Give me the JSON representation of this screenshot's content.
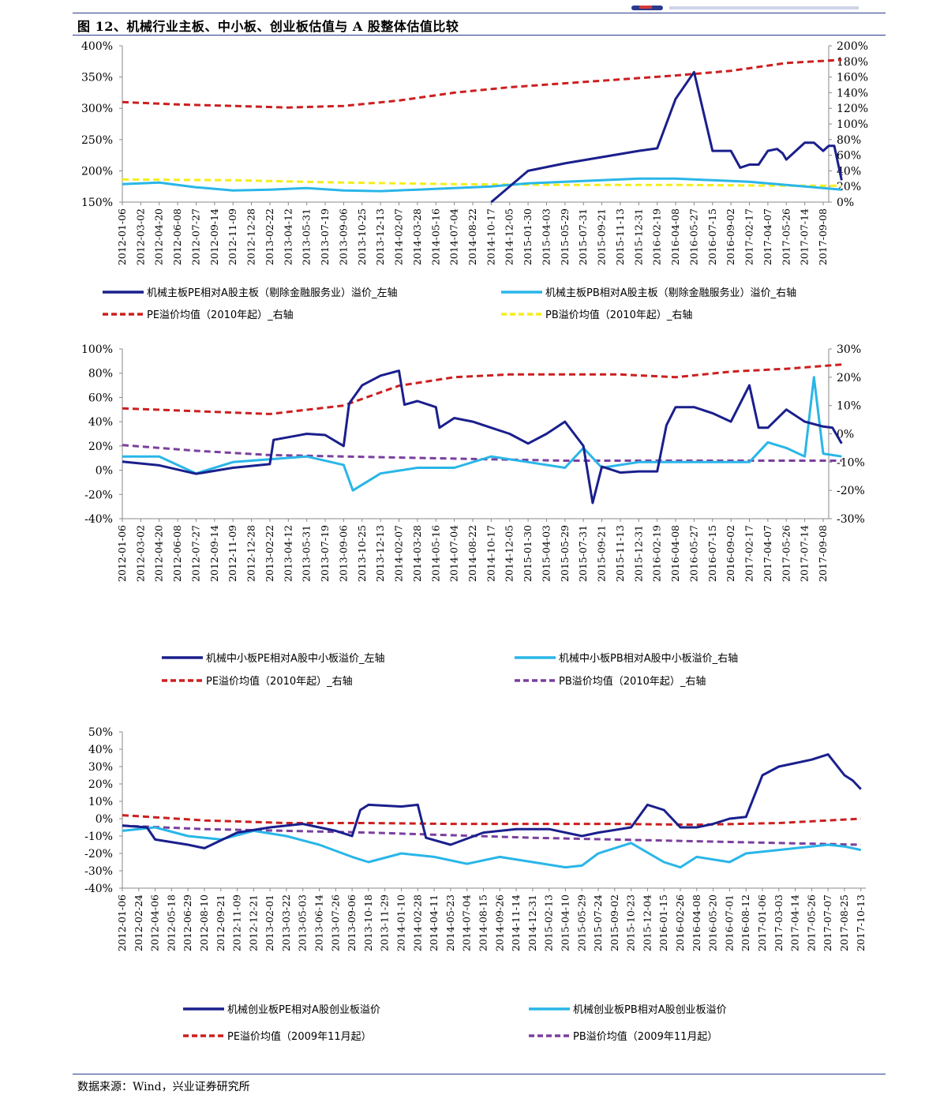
{
  "header": {
    "title": "图 12、机械行业主板、中小板、创业板估值与 A 股整体估值比较"
  },
  "source": "数据来源：Wind，兴业证券研究所",
  "colors": {
    "dark_blue": "#1a1f8c",
    "light_blue": "#29b6e8",
    "red": "#cc1f1f",
    "yellow": "#f5ee1a",
    "purple": "#7a3f9e"
  },
  "chart_data": [
    {
      "type": "line",
      "left_ylim": [
        150,
        400
      ],
      "left_yticks": [
        "400%",
        "350%",
        "300%",
        "250%",
        "200%",
        "150%"
      ],
      "right_ylim": [
        0,
        200
      ],
      "right_yticks": [
        "200%",
        "180%",
        "160%",
        "140%",
        "120%",
        "100%",
        "80%",
        "60%",
        "40%",
        "20%",
        "0%"
      ],
      "x_tick_labels": [
        "2012-01-06",
        "2012-03-02",
        "2012-04-20",
        "2012-06-08",
        "2012-07-27",
        "2012-09-14",
        "2012-11-09",
        "2012-12-28",
        "2013-02-22",
        "2013-04-12",
        "2013-05-31",
        "2013-07-19",
        "2013-09-06",
        "2013-10-25",
        "2013-12-13",
        "2014-02-07",
        "2014-03-28",
        "2014-05-16",
        "2014-07-04",
        "2014-08-22",
        "2014-10-17",
        "2014-12-05",
        "2015-01-30",
        "2015-04-03",
        "2015-05-29",
        "2015-07-31",
        "2015-09-21",
        "2015-11-13",
        "2015-12-31",
        "2016-02-19",
        "2016-04-08",
        "2016-05-27",
        "2016-07-15",
        "2016-09-02",
        "2017-02-17",
        "2017-04-07",
        "2017-05-26",
        "2017-07-14",
        "2017-09-08"
      ],
      "series": [
        {
          "name": "机械主板PE相对A股主板（剔除金融服务业）溢价_左轴",
          "axis": "left",
          "color": "#1a1f8c",
          "style": "solid",
          "x": [
            0,
            3,
            6,
            9,
            12,
            15,
            18,
            20,
            22,
            24,
            26,
            28,
            29,
            30,
            31,
            32,
            33,
            33.5,
            34,
            34.5,
            35,
            35.5,
            35.8,
            36,
            37,
            37.5,
            38,
            38.3,
            38.6,
            39
          ],
          "values": [
            null,
            null,
            null,
            null,
            null,
            null,
            null,
            140,
            200,
            212,
            222,
            232,
            236,
            315,
            358,
            232,
            232,
            205,
            210,
            210,
            232,
            235,
            228,
            218,
            245,
            245,
            232,
            240,
            240,
            185
          ],
          "xv": [],
          "yv": []
        },
        {
          "name": "机械主板PB相对A股主板（剔除金融服务业）溢价_右轴",
          "axis": "right",
          "color": "#29b6e8",
          "style": "solid",
          "x": [
            0,
            2,
            4,
            6,
            8,
            10,
            12,
            14,
            16,
            18,
            20,
            22,
            24,
            26,
            28,
            30,
            32,
            34,
            36,
            38,
            39
          ],
          "values": [
            23,
            25,
            19,
            15,
            16,
            18,
            15,
            14,
            16,
            18,
            20,
            24,
            26,
            28,
            30,
            30,
            28,
            26,
            22,
            18,
            16
          ]
        },
        {
          "name": "PE溢价均值（2010年起）_右轴",
          "axis": "right",
          "color": "#cc1f1f",
          "style": "dashed",
          "x": [
            0,
            3,
            6,
            9,
            12,
            15,
            18,
            21,
            24,
            27,
            30,
            33,
            36,
            39
          ],
          "values": [
            128,
            125,
            123,
            121,
            123,
            130,
            140,
            147,
            152,
            157,
            162,
            168,
            178,
            182
          ]
        },
        {
          "name": "PB溢价均值（2010年起）_右轴",
          "axis": "right",
          "color": "#f5ee1a",
          "style": "dashed",
          "x": [
            0,
            6,
            12,
            18,
            24,
            30,
            36,
            39
          ],
          "values": [
            29,
            28,
            25,
            23,
            22,
            22,
            21,
            21
          ]
        }
      ]
    },
    {
      "type": "line",
      "left_ylim": [
        -40,
        100
      ],
      "left_yticks": [
        "100%",
        "80%",
        "60%",
        "40%",
        "20%",
        "0%",
        "-20%",
        "-40%"
      ],
      "right_ylim": [
        -30,
        30
      ],
      "right_yticks": [
        "30%",
        "20%",
        "10%",
        "0%",
        "-10%",
        "-20%",
        "-30%"
      ],
      "x_tick_labels": [
        "2012-01-06",
        "2012-03-02",
        "2012-04-20",
        "2012-06-08",
        "2012-07-27",
        "2012-09-14",
        "2012-11-09",
        "2012-12-28",
        "2013-02-22",
        "2013-04-12",
        "2013-05-31",
        "2013-07-19",
        "2013-09-06",
        "2013-10-25",
        "2013-12-13",
        "2014-02-07",
        "2014-03-28",
        "2014-05-16",
        "2014-07-04",
        "2014-08-22",
        "2014-10-17",
        "2014-12-05",
        "2015-01-30",
        "2015-04-03",
        "2015-05-29",
        "2015-07-31",
        "2015-09-21",
        "2015-11-13",
        "2015-12-31",
        "2016-02-19",
        "2016-04-08",
        "2016-05-27",
        "2016-07-15",
        "2016-09-02",
        "2017-02-17",
        "2017-04-07",
        "2017-05-26",
        "2017-07-14",
        "2017-09-08"
      ],
      "series": [
        {
          "name": "机械中小板PE相对A股中小板溢价_左轴",
          "axis": "left",
          "color": "#1a1f8c",
          "style": "solid",
          "x": [
            0,
            2,
            4,
            6,
            8,
            8.2,
            10,
            11,
            12,
            12.3,
            13,
            14,
            15,
            15.3,
            16,
            17,
            17.2,
            18,
            19,
            20,
            21,
            22,
            23,
            24,
            25,
            25.5,
            26,
            27,
            28,
            29,
            29.5,
            30,
            31,
            32,
            33,
            34,
            34.5,
            35,
            36,
            37,
            38,
            38.5,
            39
          ],
          "values": [
            7,
            4,
            -3,
            2,
            5,
            25,
            30,
            29,
            20,
            55,
            70,
            78,
            82,
            54,
            57,
            52,
            35,
            43,
            40,
            35,
            30,
            22,
            30,
            40,
            20,
            -27,
            3,
            -2,
            -1,
            -1,
            37,
            52,
            52,
            47,
            40,
            70,
            35,
            35,
            50,
            40,
            36,
            35,
            22
          ]
        },
        {
          "name": "机械中小板PB相对A股中小板溢价_右轴",
          "axis": "right",
          "color": "#29b6e8",
          "style": "solid",
          "x": [
            0,
            2,
            4,
            6,
            8,
            10,
            12,
            12.5,
            14,
            16,
            18,
            20,
            22,
            24,
            25,
            26,
            28,
            30,
            32,
            34,
            35,
            36,
            37,
            37.5,
            38,
            39
          ],
          "values": [
            -8,
            -8,
            -14,
            -10,
            -9,
            -8,
            -11,
            -20,
            -14,
            -12,
            -12,
            -8,
            -10,
            -12,
            -5,
            -12,
            -10,
            -10,
            -10,
            -10,
            -3,
            -5,
            -8,
            20,
            -7,
            -8
          ]
        },
        {
          "name": "PE溢价均值（2010年起）_右轴",
          "axis": "right",
          "color": "#cc1f1f",
          "style": "dashed",
          "x": [
            0,
            4,
            8,
            12,
            15,
            18,
            21,
            24,
            27,
            30,
            33,
            36,
            39
          ],
          "values": [
            9,
            8,
            7,
            10,
            17,
            20,
            21,
            21,
            21,
            20,
            22,
            23,
            24.5
          ]
        },
        {
          "name": "PB溢价均值（2010年起）_右轴",
          "axis": "right",
          "color": "#7a3f9e",
          "style": "dashed",
          "x": [
            0,
            4,
            8,
            12,
            16,
            20,
            24,
            28,
            32,
            36,
            39
          ],
          "values": [
            -4,
            -6,
            -7.5,
            -8,
            -8.5,
            -9,
            -9.5,
            -9.5,
            -9.5,
            -9.5,
            -9.5
          ]
        }
      ]
    },
    {
      "type": "line",
      "ylim": [
        -40,
        50
      ],
      "yticks": [
        "50%",
        "40%",
        "30%",
        "20%",
        "10%",
        "0%",
        "-10%",
        "-20%",
        "-30%",
        "-40%"
      ],
      "x_tick_labels": [
        "2012-01-06",
        "2012-02-24",
        "2012-04-06",
        "2012-05-18",
        "2012-06-29",
        "2012-08-10",
        "2012-09-21",
        "2012-11-09",
        "2012-12-21",
        "2013-02-01",
        "2013-03-22",
        "2013-05-03",
        "2013-06-14",
        "2013-07-26",
        "2013-09-06",
        "2013-10-18",
        "2013-11-29",
        "2014-01-10",
        "2014-02-28",
        "2014-04-11",
        "2014-05-23",
        "2014-07-04",
        "2014-08-15",
        "2014-09-26",
        "2014-11-14",
        "2014-12-31",
        "2015-02-13",
        "2015-04-10",
        "2015-05-29",
        "2015-07-24",
        "2015-09-02",
        "2015-10-23",
        "2015-12-04",
        "2016-01-15",
        "2016-02-26",
        "2016-04-08",
        "2016-05-20",
        "2016-07-01",
        "2016-08-12",
        "2017-01-06",
        "2017-03-03",
        "2017-04-14",
        "2017-05-26",
        "2017-07-07",
        "2017-08-25",
        "2017-10-13"
      ],
      "series": [
        {
          "name": "机械创业板PE相对A股创业板溢价",
          "color": "#1a1f8c",
          "style": "solid",
          "x": [
            0,
            1.5,
            2,
            4,
            5,
            7,
            9,
            11,
            13,
            14,
            14.5,
            15,
            17,
            18,
            18.5,
            20,
            22,
            24,
            26,
            28,
            29,
            31,
            32,
            33,
            34,
            35,
            36,
            37,
            38,
            39,
            40,
            41,
            42,
            43,
            44,
            44.5,
            45
          ],
          "values": [
            -4,
            -5,
            -12,
            -15,
            -17,
            -8,
            -5,
            -3,
            -7,
            -10,
            5,
            8,
            7,
            8,
            -11,
            -15,
            -8,
            -6,
            -6,
            -10,
            -8,
            -5,
            8,
            5,
            -5,
            -5,
            -3,
            0,
            1,
            25,
            30,
            32,
            34,
            37,
            25,
            22,
            17
          ]
        },
        {
          "name": "机械创业板PB相对A股创业板溢价",
          "color": "#29b6e8",
          "style": "solid",
          "x": [
            0,
            2,
            4,
            6,
            8,
            10,
            12,
            14,
            15,
            17,
            19,
            21,
            23,
            25,
            27,
            28,
            29,
            31,
            33,
            34,
            35,
            37,
            38,
            40,
            42,
            43,
            44,
            45
          ],
          "values": [
            -7,
            -5,
            -10,
            -12,
            -7,
            -10,
            -15,
            -22,
            -25,
            -20,
            -22,
            -26,
            -22,
            -25,
            -28,
            -27,
            -20,
            -14,
            -25,
            -28,
            -22,
            -25,
            -20,
            -18,
            -16,
            -15,
            -16,
            -18
          ]
        },
        {
          "name": "PE溢价均值（2009年11月起）",
          "color": "#cc1f1f",
          "style": "dashed",
          "x": [
            0,
            5,
            10,
            15,
            20,
            25,
            30,
            35,
            40,
            45
          ],
          "values": [
            2,
            -1,
            -2.5,
            -2.5,
            -3,
            -3,
            -3,
            -3.5,
            -2.5,
            0
          ]
        },
        {
          "name": "PB溢价均值（2009年11月起）",
          "color": "#7a3f9e",
          "style": "dashed",
          "x": [
            0,
            5,
            10,
            15,
            20,
            25,
            30,
            35,
            40,
            45
          ],
          "values": [
            -4,
            -6,
            -7,
            -8,
            -9.5,
            -11,
            -12,
            -13,
            -14,
            -15
          ]
        }
      ]
    }
  ]
}
